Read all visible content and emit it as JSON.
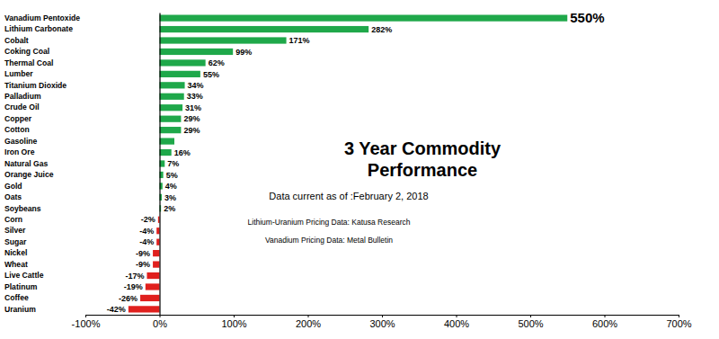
{
  "chart_data": {
    "type": "bar",
    "orientation": "horizontal",
    "title": "3 Year Commodity Performance",
    "subtitle": "Data current as of :February 2, 2018",
    "annotations": [
      "Lithium-Uranium Pricing Data: Katusa Research",
      "Vanadium Pricing Data: Metal Bulletin"
    ],
    "categories": [
      "Vanadium Pentoxide",
      "Lithium Carbonate",
      "Cobalt",
      "Coking Coal",
      "Thermal Coal",
      "Lumber",
      "Titanium Dioxide",
      "Palladium",
      "Crude Oil",
      "Copper",
      "Cotton",
      "Gasoline",
      "Iron Ore",
      "Natural Gas",
      "Orange Juice",
      "Gold",
      "Oats",
      "Soybeans",
      "Corn",
      "Silver",
      "Sugar",
      "Nickel",
      "Wheat",
      "Live Cattle",
      "Platinum",
      "Coffee",
      "Uranium"
    ],
    "values": [
      550,
      282,
      171,
      99,
      62,
      55,
      34,
      33,
      31,
      29,
      29,
      20,
      16,
      7,
      5,
      4,
      3,
      2,
      -2,
      -4,
      -4,
      -9,
      -9,
      -17,
      -19,
      -26,
      -42
    ],
    "value_labels": [
      "550%",
      "282%",
      "171%",
      "99%",
      "62%",
      "55%",
      "34%",
      "33%",
      "31%",
      "29%",
      "29%",
      null,
      "16%",
      "7%",
      "5%",
      "4%",
      "3%",
      "2%",
      "-2%",
      "-4%",
      "-4%",
      "-9%",
      "-9%",
      "-17%",
      "-19%",
      "-26%",
      "-42%"
    ],
    "colors": [
      "#1fa84a",
      "#1fa84a",
      "#1fa84a",
      "#1fa84a",
      "#1fa84a",
      "#1fa84a",
      "#1fa84a",
      "#1fa84a",
      "#1fa84a",
      "#1fa84a",
      "#1fa84a",
      "#1fa84a",
      "#1fa84a",
      "#1fa84a",
      "#1fa84a",
      "#1fa84a",
      "#1fa84a",
      "#1fa84a",
      "#e0201e",
      "#e0201e",
      "#e0201e",
      "#e0201e",
      "#e0201e",
      "#e0201e",
      "#e0201e",
      "#e0201e",
      "#e0201e"
    ],
    "xlim": [
      -100,
      700
    ],
    "xticks": [
      {
        "value": -100,
        "label": "-100%"
      },
      {
        "value": 0,
        "label": "0%"
      },
      {
        "value": 100,
        "label": "100%"
      },
      {
        "value": 200,
        "label": "200%"
      },
      {
        "value": 300,
        "label": "300%"
      },
      {
        "value": 400,
        "label": "400%"
      },
      {
        "value": 500,
        "label": "500%"
      },
      {
        "value": 600,
        "label": "600%"
      },
      {
        "value": 700,
        "label": "700%"
      }
    ],
    "data_labels": true,
    "grid": false
  }
}
